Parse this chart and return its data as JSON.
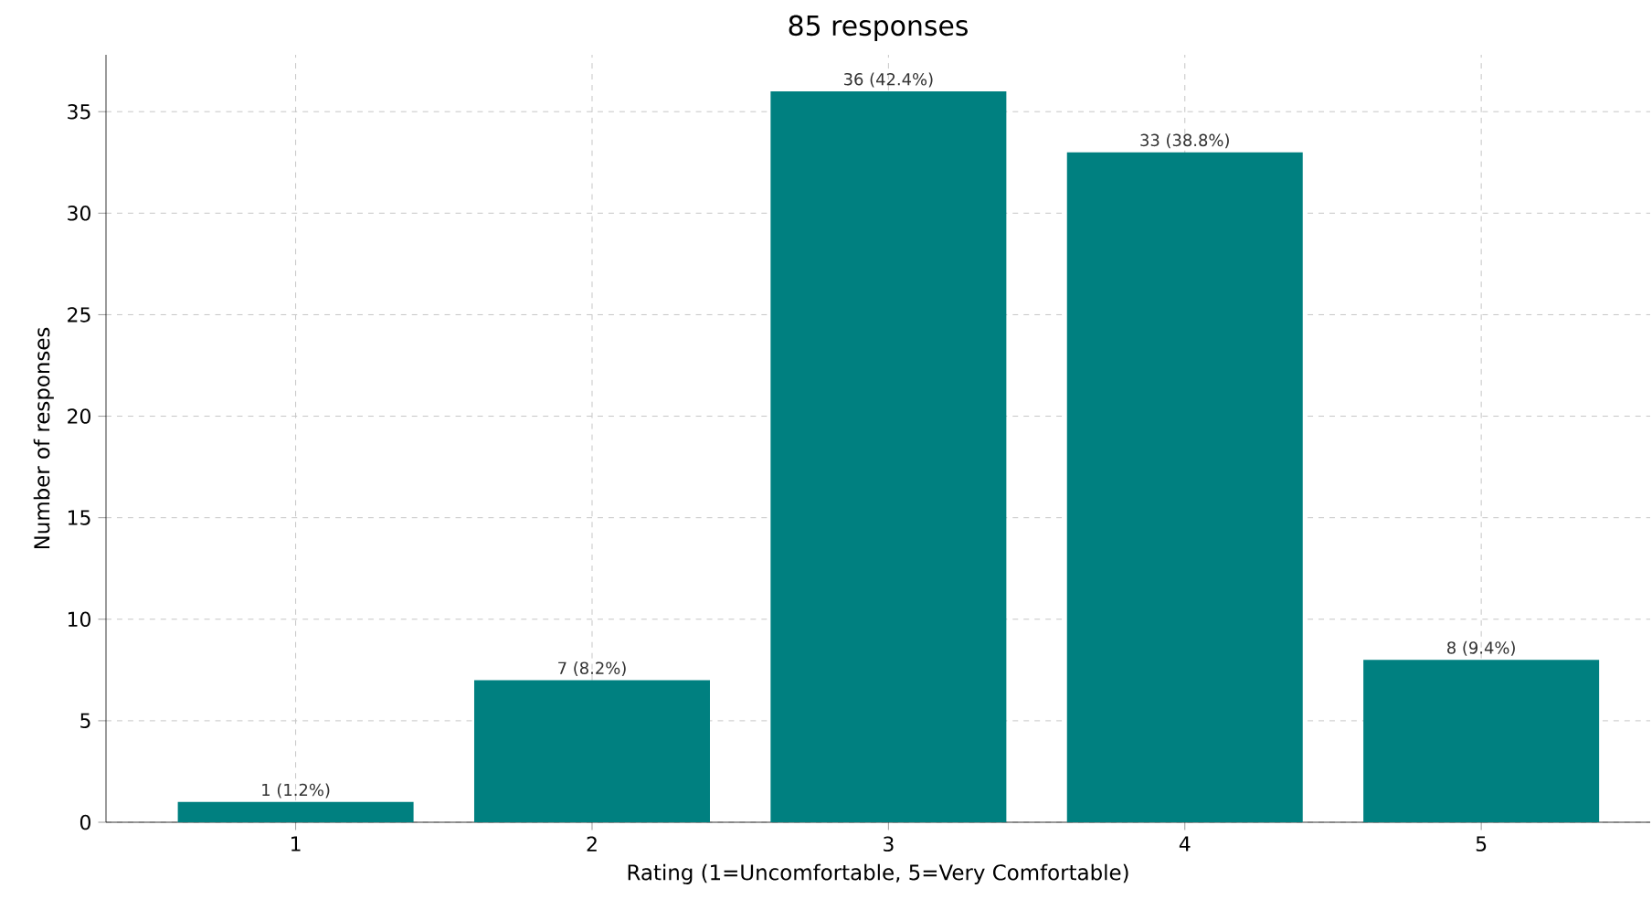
{
  "chart_data": {
    "type": "bar",
    "title": "85 responses",
    "xlabel": "Rating (1=Uncomfortable, 5=Very Comfortable)",
    "ylabel": "Number of responses",
    "categories": [
      "1",
      "2",
      "3",
      "4",
      "5"
    ],
    "values": [
      1,
      7,
      36,
      33,
      8
    ],
    "value_labels": [
      "1 (1.2%)",
      "7 (8.2%)",
      "36 (42.4%)",
      "33 (38.8%)",
      "8 (9.4%)"
    ],
    "color": "#008080",
    "ylim": [
      0,
      37.8
    ],
    "yticks": [
      0,
      5,
      10,
      15,
      20,
      25,
      30,
      35
    ],
    "grid": true
  }
}
